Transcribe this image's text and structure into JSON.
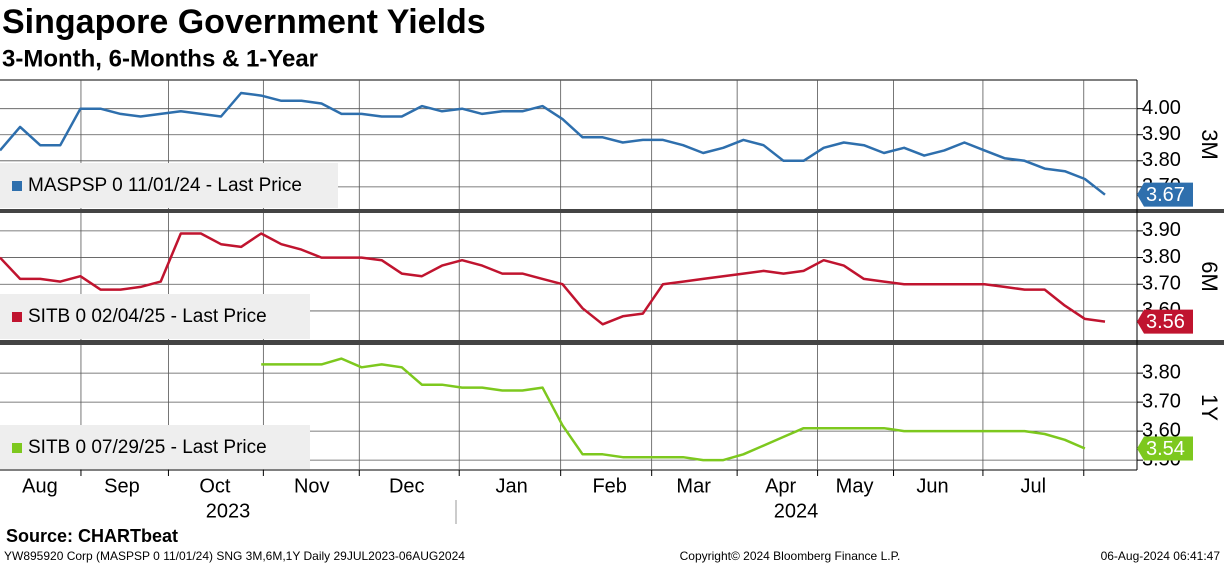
{
  "title": "Singapore Government Yields",
  "subtitle": "3-Month, 6-Months & 1-Year",
  "source": "Source: CHARTbeat",
  "footer": {
    "left": "YW895920 Corp (MASPSP 0 11/01/24) SNG 3M,6M,1Y  Daily 29JUL2023-06AUG2024",
    "center": "Copyright© 2024 Bloomberg Finance L.P.",
    "right": "06-Aug-2024 06:41:47"
  },
  "x_axis": {
    "xlim": [
      0,
      56.6
    ],
    "xticks": [
      {
        "value": 1.99,
        "label": "Aug"
      },
      {
        "value": 6.07,
        "label": "Sep"
      },
      {
        "value": 10.7,
        "label": "Oct"
      },
      {
        "value": 15.52,
        "label": "Nov"
      },
      {
        "value": 20.25,
        "label": "Dec"
      },
      {
        "value": 25.47,
        "label": "Jan"
      },
      {
        "value": 30.35,
        "label": "Feb"
      },
      {
        "value": 34.53,
        "label": "Mar"
      },
      {
        "value": 38.86,
        "label": "Apr"
      },
      {
        "value": 42.54,
        "label": "May"
      },
      {
        "value": 46.42,
        "label": "Jun"
      },
      {
        "value": 51.44,
        "label": "Jul"
      }
    ],
    "years": [
      "2023",
      "2024"
    ]
  },
  "chart_data": [
    {
      "type": "line",
      "panel_label": "3M",
      "ylim": [
        3.615,
        4.11
      ],
      "grid": true,
      "yticks": [
        {
          "value": 3.7,
          "label": "3.70"
        },
        {
          "value": 3.8,
          "label": "3.80"
        },
        {
          "value": 3.9,
          "label": "3.90"
        },
        {
          "value": 4,
          "label": "4.00"
        }
      ],
      "series": [
        {
          "name": "MASPSP 0 11/01/24 - Last Price",
          "color": "#2e6fad",
          "values": [
            3.84,
            3.93,
            3.86,
            3.86,
            4.0,
            4.0,
            3.98,
            3.97,
            3.98,
            3.99,
            3.98,
            3.97,
            4.06,
            4.05,
            4.03,
            4.03,
            4.02,
            3.98,
            3.98,
            3.97,
            3.97,
            4.01,
            3.99,
            4.0,
            3.98,
            3.99,
            3.99,
            4.01,
            3.96,
            3.89,
            3.89,
            3.87,
            3.88,
            3.88,
            3.86,
            3.83,
            3.85,
            3.88,
            3.86,
            3.8,
            3.8,
            3.85,
            3.87,
            3.86,
            3.83,
            3.85,
            3.82,
            3.84,
            3.87,
            3.84,
            3.81,
            3.8,
            3.77,
            3.76,
            3.73,
            3.67
          ]
        }
      ]
    },
    {
      "type": "line",
      "panel_label": "6M",
      "ylim": [
        3.491,
        3.967
      ],
      "grid": true,
      "yticks": [
        {
          "value": 3.6,
          "label": "3.60"
        },
        {
          "value": 3.7,
          "label": "3.70"
        },
        {
          "value": 3.8,
          "label": "3.80"
        },
        {
          "value": 3.9,
          "label": "3.90"
        }
      ],
      "series": [
        {
          "name": "SITB 0 02/04/25 - Last Price",
          "color": "#c0142f",
          "values": [
            3.8,
            3.72,
            3.72,
            3.71,
            3.73,
            3.68,
            3.68,
            3.69,
            3.71,
            3.89,
            3.89,
            3.85,
            3.84,
            3.89,
            3.85,
            3.83,
            3.8,
            3.8,
            3.8,
            3.79,
            3.74,
            3.73,
            3.77,
            3.79,
            3.77,
            3.74,
            3.74,
            3.72,
            3.7,
            3.61,
            3.55,
            3.58,
            3.59,
            3.7,
            3.71,
            3.72,
            3.73,
            3.74,
            3.75,
            3.74,
            3.75,
            3.79,
            3.77,
            3.72,
            3.71,
            3.7,
            3.7,
            3.7,
            3.7,
            3.7,
            3.69,
            3.68,
            3.68,
            3.62,
            3.57,
            3.56
          ]
        }
      ]
    },
    {
      "type": "line",
      "panel_label": "1Y",
      "ylim": [
        3.466,
        3.897
      ],
      "grid": true,
      "yticks": [
        {
          "value": 3.5,
          "label": "3.50"
        },
        {
          "value": 3.6,
          "label": "3.60"
        },
        {
          "value": 3.7,
          "label": "3.70"
        },
        {
          "value": 3.8,
          "label": "3.80"
        }
      ],
      "series": [
        {
          "name": "SITB 0 07/29/25 - Last Price",
          "color": "#7dc81e",
          "values": [
            null,
            null,
            null,
            null,
            null,
            null,
            null,
            null,
            null,
            null,
            null,
            null,
            null,
            3.83,
            3.83,
            3.83,
            3.83,
            3.85,
            3.82,
            3.83,
            3.82,
            3.76,
            3.76,
            3.75,
            3.75,
            3.74,
            3.74,
            3.75,
            3.62,
            3.52,
            3.52,
            3.51,
            3.51,
            3.51,
            3.51,
            3.5,
            3.5,
            3.52,
            3.55,
            3.58,
            3.61,
            3.61,
            3.61,
            3.61,
            3.61,
            3.6,
            3.6,
            3.6,
            3.6,
            3.6,
            3.6,
            3.6,
            3.59,
            3.57,
            3.54,
            null
          ]
        }
      ]
    }
  ]
}
